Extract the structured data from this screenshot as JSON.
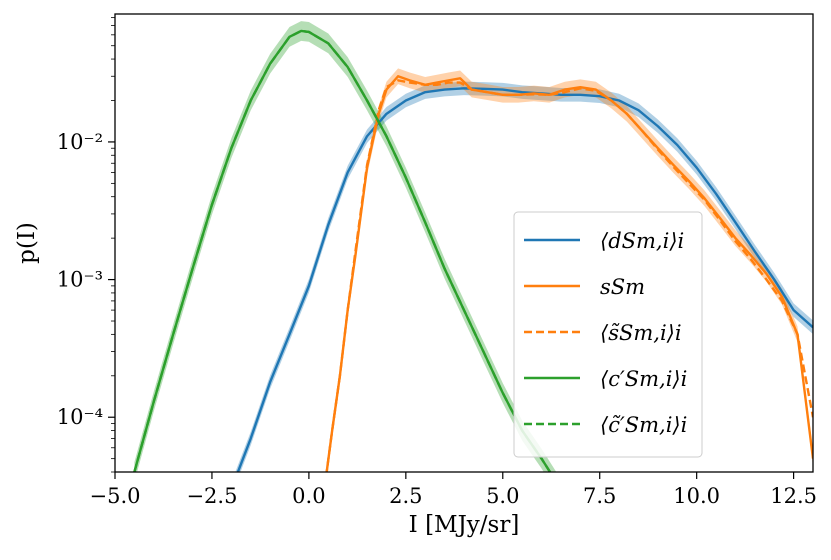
{
  "chart_data": {
    "type": "line",
    "title": "",
    "xlabel": "I [MJy/sr]",
    "ylabel": "p(I)",
    "xlim": [
      -5.0,
      13.0
    ],
    "ylim": [
      4e-05,
      0.085
    ],
    "yscale": "log",
    "x_ticks": [
      -5.0,
      -2.5,
      0.0,
      2.5,
      5.0,
      7.5,
      10.0,
      12.5
    ],
    "x_tick_labels": [
      "−5.0",
      "−2.5",
      "0.0",
      "2.5",
      "5.0",
      "7.5",
      "10.0",
      "12.5"
    ],
    "y_ticks": [
      0.0001,
      0.001,
      0.01
    ],
    "y_tick_labels": [
      "10⁻⁴",
      "10⁻³",
      "10⁻²"
    ],
    "legend_position": "center-right",
    "series": [
      {
        "name": "⟨d_S^{m,i}⟩_i",
        "legend_label": "⟨dSm,i⟩i",
        "color": "#1f77b4",
        "style": "solid",
        "band": true,
        "x": [
          -2.0,
          -1.5,
          -1.0,
          -0.5,
          0.0,
          0.5,
          1.0,
          1.5,
          2.0,
          2.5,
          3.0,
          3.5,
          4.0,
          4.5,
          5.0,
          5.5,
          6.0,
          6.5,
          7.0,
          7.5,
          8.0,
          8.5,
          9.0,
          9.5,
          10.0,
          10.5,
          11.0,
          11.5,
          12.0,
          12.5,
          13.0
        ],
        "y": [
          3e-05,
          7e-05,
          0.00018,
          0.0004,
          0.0009,
          0.0025,
          0.006,
          0.011,
          0.016,
          0.02,
          0.023,
          0.024,
          0.0245,
          0.0243,
          0.024,
          0.023,
          0.0225,
          0.022,
          0.022,
          0.0215,
          0.02,
          0.017,
          0.013,
          0.0095,
          0.0065,
          0.0042,
          0.0026,
          0.0016,
          0.001,
          0.0006,
          0.00045
        ]
      },
      {
        "name": "s_S^m",
        "legend_label": "sSm",
        "color": "#ff7f0e",
        "style": "solid",
        "band": true,
        "x": [
          0.4,
          0.6,
          0.8,
          1.0,
          1.2,
          1.5,
          1.8,
          2.0,
          2.3,
          2.6,
          3.0,
          3.3,
          3.6,
          3.9,
          4.2,
          4.6,
          5.0,
          5.4,
          5.8,
          6.2,
          6.6,
          7.0,
          7.4,
          7.8,
          8.2,
          8.6,
          9.0,
          9.4,
          9.8,
          10.2,
          10.6,
          11.0,
          11.4,
          11.8,
          12.2,
          12.6,
          13.0
        ],
        "y": [
          3e-05,
          8e-05,
          0.0002,
          0.0006,
          0.0015,
          0.0065,
          0.016,
          0.024,
          0.03,
          0.028,
          0.026,
          0.027,
          0.028,
          0.029,
          0.024,
          0.023,
          0.022,
          0.022,
          0.0225,
          0.022,
          0.024,
          0.025,
          0.024,
          0.02,
          0.016,
          0.012,
          0.009,
          0.0068,
          0.0052,
          0.0039,
          0.0028,
          0.002,
          0.0015,
          0.0011,
          0.00075,
          0.0004,
          5e-05
        ]
      },
      {
        "name": "⟨s̃_S^{m,i}⟩_i",
        "legend_label": "⟨s̃Sm,i⟩i",
        "color": "#ff7f0e",
        "style": "dashed",
        "band": false,
        "x": [
          0.4,
          0.6,
          0.8,
          1.0,
          1.2,
          1.5,
          1.8,
          2.0,
          2.3,
          2.6,
          3.0,
          3.3,
          3.6,
          3.9,
          4.2,
          4.6,
          5.0,
          5.4,
          5.8,
          6.2,
          6.6,
          7.0,
          7.4,
          7.8,
          8.2,
          8.6,
          9.0,
          9.4,
          9.8,
          10.2,
          10.6,
          11.0,
          11.4,
          11.8,
          12.2,
          12.6,
          13.0
        ],
        "y": [
          3e-05,
          8e-05,
          0.0002,
          0.0006,
          0.0016,
          0.0068,
          0.017,
          0.025,
          0.028,
          0.027,
          0.026,
          0.026,
          0.027,
          0.027,
          0.024,
          0.023,
          0.022,
          0.022,
          0.0222,
          0.022,
          0.023,
          0.0245,
          0.0235,
          0.02,
          0.016,
          0.012,
          0.0088,
          0.0066,
          0.005,
          0.0038,
          0.0027,
          0.0019,
          0.0014,
          0.001,
          0.0007,
          0.0004,
          0.0001
        ]
      },
      {
        "name": "⟨c′_S^{m,i}⟩_i",
        "legend_label": "⟨c′Sm,i⟩i",
        "color": "#2ca02c",
        "style": "solid",
        "band": true,
        "x": [
          -4.5,
          -4.0,
          -3.5,
          -3.0,
          -2.5,
          -2.0,
          -1.5,
          -1.0,
          -0.5,
          -0.2,
          0.0,
          0.5,
          1.0,
          1.5,
          2.0,
          2.5,
          3.0,
          3.5,
          4.0,
          4.5,
          5.0,
          5.5,
          6.0,
          6.5
        ],
        "y": [
          4e-05,
          0.00013,
          0.0004,
          0.0012,
          0.0035,
          0.009,
          0.02,
          0.037,
          0.058,
          0.064,
          0.063,
          0.052,
          0.035,
          0.02,
          0.011,
          0.0055,
          0.0026,
          0.0012,
          0.0006,
          0.0003,
          0.00015,
          8e-05,
          5e-05,
          3e-05
        ]
      },
      {
        "name": "⟨c̃′_S^{m,i}⟩_i",
        "legend_label": "⟨c̃′Sm,i⟩i",
        "color": "#2ca02c",
        "style": "dashed",
        "band": false,
        "x": [
          -4.5,
          -4.0,
          -3.5,
          -3.0,
          -2.5,
          -2.0,
          -1.5,
          -1.0,
          -0.5,
          -0.2,
          0.0,
          0.5,
          1.0,
          1.5,
          2.0,
          2.5,
          3.0,
          3.5,
          4.0,
          4.5,
          5.0,
          5.5,
          6.0,
          6.5
        ],
        "y": [
          4e-05,
          0.00013,
          0.0004,
          0.0012,
          0.0035,
          0.009,
          0.02,
          0.037,
          0.058,
          0.064,
          0.063,
          0.052,
          0.035,
          0.02,
          0.011,
          0.0055,
          0.0026,
          0.0012,
          0.0006,
          0.0003,
          0.00015,
          8e-05,
          5e-05,
          3e-05
        ]
      }
    ]
  }
}
